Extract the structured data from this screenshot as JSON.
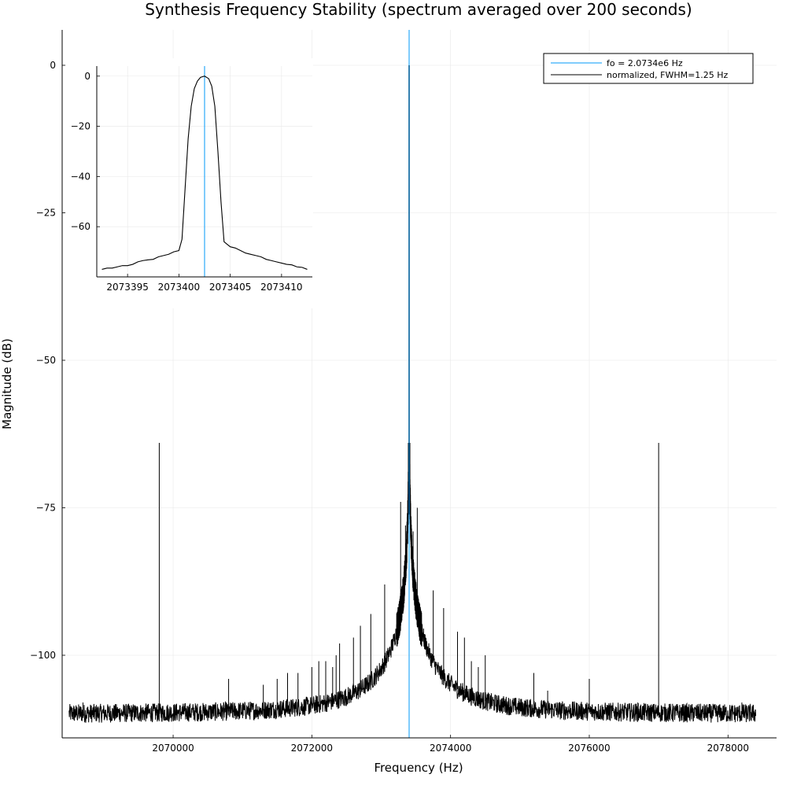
{
  "chart_data": [
    {
      "type": "line",
      "title": "Synthesis Frequency Stability (spectrum averaged over 200 seconds)",
      "xlabel": "Frequency (Hz)",
      "ylabel": "Magnitude (dB)",
      "xlim": [
        2068400,
        2078700
      ],
      "ylim": [
        -114,
        6
      ],
      "x_ticks": [
        2070000,
        2072000,
        2074000,
        2076000,
        2078000
      ],
      "x_tick_labels": [
        "2070000",
        "2072000",
        "2074000",
        "2076000",
        "2078000"
      ],
      "y_ticks": [
        0,
        -25,
        -50,
        -75,
        -100
      ],
      "y_tick_labels": [
        "0",
        "−25",
        "−50",
        "−75",
        "−100"
      ],
      "grid": true,
      "legend_placement": "top-right",
      "series": [
        {
          "name": "fo = 2.0734e6 Hz",
          "kind": "vline",
          "x": 2073402.5,
          "color": "#009AFA"
        },
        {
          "name": "normalized, FWHM=1.25 Hz",
          "kind": "spectrum",
          "color": "#000000",
          "noise_floor": -110,
          "peak_x": 2073402.5,
          "peak_y": 0,
          "range": [
            2068500,
            2078400
          ],
          "spurs": [
            {
              "x": 2069800,
              "y": -64
            },
            {
              "x": 2077000,
              "y": -64
            },
            {
              "x": 2073400,
              "y": -64
            },
            {
              "x": 2073280,
              "y": -74
            },
            {
              "x": 2073350,
              "y": -78
            },
            {
              "x": 2073460,
              "y": -79
            },
            {
              "x": 2073520,
              "y": -75
            },
            {
              "x": 2073050,
              "y": -88
            },
            {
              "x": 2072850,
              "y": -93
            },
            {
              "x": 2073750,
              "y": -89
            },
            {
              "x": 2073900,
              "y": -92
            },
            {
              "x": 2074100,
              "y": -96
            },
            {
              "x": 2072700,
              "y": -95
            },
            {
              "x": 2072600,
              "y": -97
            },
            {
              "x": 2072400,
              "y": -98
            },
            {
              "x": 2072350,
              "y": -100
            },
            {
              "x": 2072300,
              "y": -102
            },
            {
              "x": 2072200,
              "y": -101
            },
            {
              "x": 2072100,
              "y": -101
            },
            {
              "x": 2072000,
              "y": -102
            },
            {
              "x": 2071800,
              "y": -103
            },
            {
              "x": 2071650,
              "y": -103
            },
            {
              "x": 2071500,
              "y": -104
            },
            {
              "x": 2071300,
              "y": -105
            },
            {
              "x": 2070800,
              "y": -104
            },
            {
              "x": 2068700,
              "y": -108
            },
            {
              "x": 2074200,
              "y": -97
            },
            {
              "x": 2074300,
              "y": -101
            },
            {
              "x": 2074400,
              "y": -102
            },
            {
              "x": 2074500,
              "y": -100
            },
            {
              "x": 2075200,
              "y": -103
            },
            {
              "x": 2075400,
              "y": -106
            },
            {
              "x": 2076000,
              "y": -104
            },
            {
              "x": 2076700,
              "y": -108
            },
            {
              "x": 2077500,
              "y": -109
            },
            {
              "x": 2078200,
              "y": -108
            }
          ]
        }
      ]
    },
    {
      "type": "line",
      "title": "",
      "xlabel": "",
      "ylabel": "",
      "xlim": [
        2073392,
        2073413
      ],
      "ylim": [
        -80,
        4
      ],
      "x_ticks": [
        2073395,
        2073400,
        2073405,
        2073410
      ],
      "x_tick_labels": [
        "2073395",
        "2073400",
        "2073405",
        "2073410"
      ],
      "y_ticks": [
        0,
        -20,
        -40,
        -60
      ],
      "y_tick_labels": [
        "0",
        "−20",
        "−40",
        "−60"
      ],
      "grid": true,
      "series": [
        {
          "kind": "vline",
          "x": 2073402.5,
          "color": "#009AFA"
        },
        {
          "kind": "line",
          "color": "#000000",
          "x": [
            2073392.5,
            2073393,
            2073393.5,
            2073394,
            2073394.5,
            2073395,
            2073395.5,
            2073396,
            2073396.5,
            2073397,
            2073397.5,
            2073398,
            2073398.5,
            2073399,
            2073399.5,
            2073400,
            2073400.3,
            2073400.6,
            2073400.9,
            2073401.2,
            2073401.5,
            2073401.8,
            2073402.1,
            2073402.5,
            2073402.9,
            2073403.2,
            2073403.5,
            2073403.8,
            2073404.1,
            2073404.4,
            2073404.7,
            2073405,
            2073405.5,
            2073406,
            2073406.5,
            2073407,
            2073407.5,
            2073408,
            2073408.5,
            2073409,
            2073409.5,
            2073410,
            2073410.5,
            2073411,
            2073411.5,
            2073412,
            2073412.5
          ],
          "y": [
            -77,
            -76.5,
            -76.5,
            -76,
            -75.5,
            -75.5,
            -75,
            -74,
            -73.5,
            -73.2,
            -73,
            -72,
            -71.5,
            -71,
            -70,
            -69.5,
            -65,
            -45,
            -25,
            -12,
            -5,
            -2,
            -0.5,
            0,
            -1,
            -4,
            -12,
            -30,
            -50,
            -66,
            -67,
            -68,
            -68.5,
            -69.5,
            -70.5,
            -71,
            -71.5,
            -72,
            -73,
            -73.5,
            -74,
            -74.5,
            -75,
            -75.2,
            -76,
            -76.2,
            -77
          ]
        }
      ]
    }
  ]
}
